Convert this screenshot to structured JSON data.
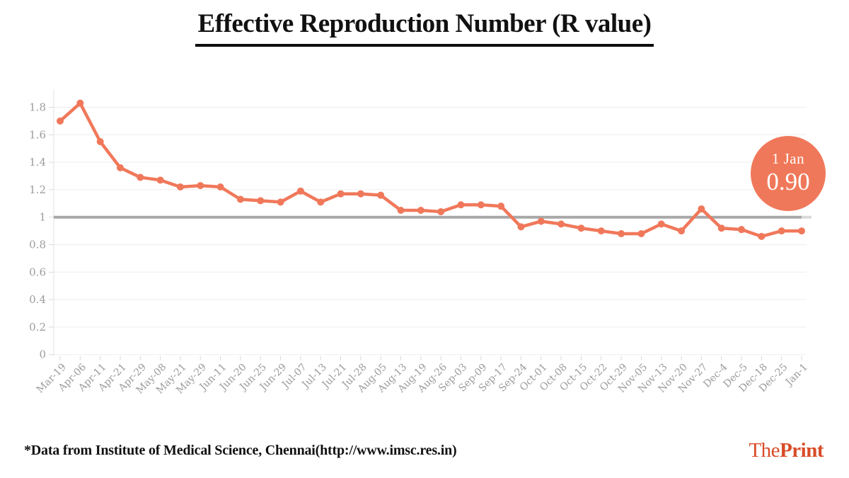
{
  "title": "Effective Reproduction Number (R value)",
  "badge": {
    "date": "1 Jan",
    "value": "0.90"
  },
  "footnote": "*Data from Institute of Medical Science, Chennai(http://www.imsc.res.in)",
  "logo": {
    "part1": "The",
    "part2": "Print"
  },
  "colors": {
    "line": "#F0785A",
    "point": "#F0785A",
    "badge_background": "#F0785A",
    "reference_line": "#A8A8A8",
    "reference_line_cap": "#D9D9D9",
    "gridline": "#EDEDED",
    "axis_line": "#E2E2E2",
    "tick_mark": "#D9D9D9",
    "tick_label": "#9C9C9C",
    "title_text": "#111111",
    "logo_text": "#D84B27"
  },
  "chart_data": {
    "type": "line",
    "title": "Effective Reproduction Number (R value)",
    "xlabel": "",
    "ylabel": "",
    "grid": true,
    "legend": false,
    "ylim": [
      0,
      1.93
    ],
    "ytick_values": [
      0,
      0.2,
      0.4,
      0.6,
      0.8,
      1,
      1.2,
      1.4,
      1.6,
      1.8
    ],
    "ytick_labels": [
      "0",
      "0.2",
      "0.4",
      "0.6",
      "0.8",
      "1",
      "1.2",
      "1.4",
      "1.6",
      "1.8"
    ],
    "reference_line": 1,
    "x": [
      "Mar-19",
      "Apr-06",
      "Apr-11",
      "Apr-21",
      "Apr-29",
      "May-08",
      "May-21",
      "May-29",
      "Jun-11",
      "Jun-20",
      "Jun-25",
      "Jun-29",
      "Jul-07",
      "Jul-13",
      "Jul-21",
      "Jul-28",
      "Aug-05",
      "Aug-13",
      "Aug-19",
      "Aug-26",
      "Sep-03",
      "Sep-09",
      "Sep-17",
      "Sep-24",
      "Oct-01",
      "Oct-08",
      "Oct-15",
      "Oct-22",
      "Oct-29",
      "Nov-05",
      "Nov-13",
      "Nov-20",
      "Nov-27",
      "Dec-4",
      "Dec-5",
      "Dec-18",
      "Dec-25",
      "Jan-1"
    ],
    "series": [
      {
        "name": "R value",
        "values": [
          1.7,
          1.83,
          1.55,
          1.36,
          1.29,
          1.27,
          1.22,
          1.23,
          1.22,
          1.13,
          1.12,
          1.11,
          1.19,
          1.11,
          1.17,
          1.17,
          1.16,
          1.05,
          1.05,
          1.04,
          1.09,
          1.09,
          1.08,
          0.93,
          0.97,
          0.95,
          0.92,
          0.9,
          0.88,
          0.88,
          0.95,
          0.9,
          1.06,
          0.92,
          0.91,
          0.86,
          0.9,
          0.9
        ]
      }
    ],
    "annotation": {
      "label": "1 Jan",
      "value": "0.90",
      "at_x": "Jan-1"
    }
  }
}
